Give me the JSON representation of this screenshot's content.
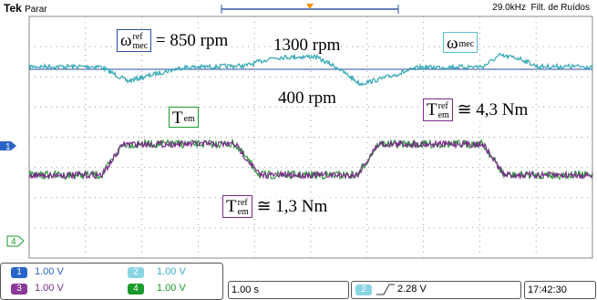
{
  "header": {
    "brand": "Tek",
    "status": "Parar",
    "frequency": "29.0kHz",
    "filter": "Filt. de Ruídos"
  },
  "annotations": [
    {
      "symbol": "ω",
      "sup": "ref",
      "sub": "mec",
      "text": "= 850 rpm"
    },
    {
      "text": "1300 rpm"
    },
    {
      "symbol": "ω",
      "sub": "mec"
    },
    {
      "text": "400 rpm"
    },
    {
      "symbol": "T",
      "sub": "em"
    },
    {
      "symbol": "T",
      "sup": "ref",
      "sub": "em",
      "text": "≅ 4,3 Nm"
    },
    {
      "symbol": "T",
      "sup": "ref",
      "sub": "em",
      "text": "≅ 1,3 Nm"
    }
  ],
  "markers": [
    "1",
    "4"
  ],
  "channels": [
    {
      "number": "1",
      "scale": "1.00 V"
    },
    {
      "number": "2",
      "scale": "1.00 V"
    },
    {
      "number": "3",
      "scale": "1.00 V"
    },
    {
      "number": "4",
      "scale": "1.00 V"
    }
  ],
  "timebase": "1.00 s",
  "trigger": {
    "channel": "2",
    "level": "2.28 V"
  },
  "clock": "17:42:30"
}
